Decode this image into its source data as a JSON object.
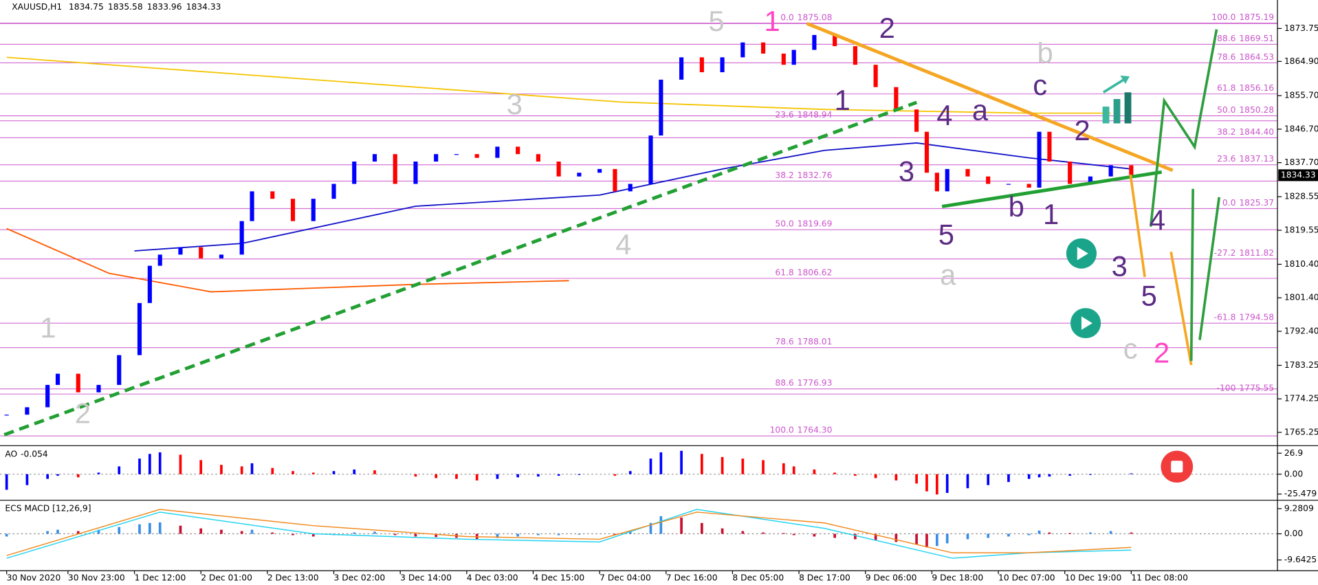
{
  "chart_data": [
    {
      "type": "candlestick",
      "title": "XAUUSD,H1",
      "ohlc_header": [
        1834.75,
        1835.58,
        1833.96,
        1834.33
      ],
      "last_price": 1834.33,
      "xlim": [
        -1.3,
        248.6
      ],
      "xticks": [
        {
          "value": 0,
          "label": "30 Nov 2020"
        },
        {
          "value": 12,
          "label": "30 Nov 23:00"
        },
        {
          "value": 25,
          "label": "1 Dec 12:00"
        },
        {
          "value": 38,
          "label": "2 Dec 01:00"
        },
        {
          "value": 51,
          "label": "2 Dec 13:00"
        },
        {
          "value": 64,
          "label": "3 Dec 02:00"
        },
        {
          "value": 77,
          "label": "3 Dec 14:00"
        },
        {
          "value": 90,
          "label": "4 Dec 03:00"
        },
        {
          "value": 103,
          "label": "4 Dec 15:00"
        },
        {
          "value": 116,
          "label": "7 Dec 04:00"
        },
        {
          "value": 129,
          "label": "7 Dec 16:00"
        },
        {
          "value": 142,
          "label": "8 Dec 05:00"
        },
        {
          "value": 155,
          "label": "8 Dec 17:00"
        },
        {
          "value": 168,
          "label": "9 Dec 06:00"
        },
        {
          "value": 181,
          "label": "9 Dec 18:00"
        },
        {
          "value": 194,
          "label": "10 Dec 07:00"
        },
        {
          "value": 207,
          "label": "10 Dec 19:00"
        },
        {
          "value": 220,
          "label": "11 Dec 08:00"
        }
      ],
      "ylim": [
        1761.9,
        1881.4
      ],
      "yticks": [
        1873.75,
        {
          "value": 1864.9,
          "label": "1864.90"
        },
        {
          "value": 1855.7,
          "label": "1855.70"
        },
        {
          "value": 1846.7,
          "label": "1846.70"
        },
        {
          "value": 1837.7,
          "label": "1837.70"
        },
        1828.55,
        1819.55,
        {
          "value": 1810.4,
          "label": "1810.40"
        },
        {
          "value": 1801.4,
          "label": "1801.40"
        },
        {
          "value": 1792.4,
          "label": "1792.40"
        },
        1783.25,
        1774.25,
        1765.25
      ],
      "x": [
        0,
        4,
        8,
        10,
        14,
        18,
        22,
        26,
        28,
        30,
        34,
        38,
        42,
        46,
        48,
        52,
        56,
        60,
        64,
        68,
        72,
        76,
        80,
        84,
        88,
        92,
        96,
        100,
        104,
        108,
        112,
        116,
        119,
        122,
        126,
        128,
        132,
        136,
        140,
        144,
        148,
        152,
        154,
        158,
        162,
        166,
        170,
        174,
        178,
        180,
        182,
        184,
        188,
        192,
        196,
        200,
        202,
        204,
        208,
        212,
        216,
        220
      ],
      "values": [
        1770,
        1772,
        1778,
        1781,
        1776,
        1778,
        1786,
        1800,
        1810,
        1813,
        1815,
        1812,
        1813,
        1822,
        1830,
        1828,
        1822,
        1828,
        1832,
        1838,
        1840,
        1832,
        1838,
        1840,
        1840,
        1839,
        1842,
        1840,
        1838,
        1834,
        1835,
        1836,
        1830,
        1832,
        1845,
        1860,
        1866,
        1862,
        1866,
        1870,
        1867,
        1864,
        1868,
        1872,
        1869,
        1864,
        1858,
        1852,
        1846,
        1835,
        1830,
        1836,
        1834,
        1832,
        1832,
        1831,
        1846,
        1838,
        1832,
        1834,
        1837,
        1834.33
      ],
      "up_color": "#0000ff",
      "down_color": "#ff0000",
      "moving_averages": [
        {
          "color": "#f5c400",
          "x": [
            0,
            60,
            120,
            160,
            200,
            216
          ],
          "values": [
            1866,
            1860,
            1854,
            1852,
            1851,
            1851
          ]
        },
        {
          "color": "#ff5a00",
          "x": [
            0,
            20,
            40,
            60,
            80,
            110
          ],
          "values": [
            1820,
            1808,
            1803,
            1804,
            1805,
            1806
          ]
        },
        {
          "color": "#1010c8",
          "x": [
            25,
            46,
            80,
            116,
            140,
            160,
            178,
            200,
            220
          ],
          "values": [
            1814,
            1816,
            1826,
            1829,
            1836,
            1841,
            1843,
            1839,
            1836
          ]
        }
      ],
      "fib_color": "#cc55cc",
      "fib_left": [
        {
          "level": "0.0",
          "price": 1875.08
        },
        {
          "level": "23.6",
          "price": 1848.94
        },
        {
          "level": "38.2",
          "price": 1832.76
        },
        {
          "level": "50.0",
          "price": 1819.69
        },
        {
          "level": "61.8",
          "price": 1806.62
        },
        {
          "level": "78.6",
          "price": 1788.01
        },
        {
          "level": "88.6",
          "price": 1776.93
        },
        {
          "level": "100.0",
          "price": {
            "value": 1764.3,
            "label": "1764.30"
          }
        }
      ],
      "fib_right": [
        {
          "level": "100.0",
          "price": 1875.19
        },
        {
          "level": "88.6",
          "price": 1869.51
        },
        {
          "level": "78.6",
          "price": 1864.53
        },
        {
          "level": "61.8",
          "price": 1856.16
        },
        {
          "level": "50.0",
          "price": 1850.28
        },
        {
          "level": "38.2",
          "price": {
            "value": 1844.4,
            "label": "1844.40"
          }
        },
        {
          "level": "23.6",
          "price": 1837.13
        },
        {
          "level": "0.0",
          "price": 1825.37
        },
        {
          "level": "-27.2",
          "price": 1811.82
        },
        {
          "level": "-61.8",
          "price": 1794.58
        },
        {
          "level": "-100",
          "price": 1775.55
        }
      ],
      "annotations": [
        {
          "text": "1",
          "color": "#c8c8c8"
        },
        {
          "text": "2",
          "color": "#c8c8c8"
        },
        {
          "text": "3",
          "color": "#c8c8c8"
        },
        {
          "text": "4",
          "color": "#c8c8c8"
        },
        {
          "text": "5",
          "color": "#c8c8c8"
        },
        {
          "text": "a",
          "color": "#c8c8c8"
        },
        {
          "text": "b",
          "color": "#c8c8c8"
        },
        {
          "text": "c",
          "color": "#c8c8c8"
        },
        {
          "text": "1",
          "color": "#ff44c4"
        },
        {
          "text": "2",
          "color": "#ff44c4"
        },
        {
          "text": "2",
          "color": "#5b2c83"
        },
        {
          "text": "1",
          "color": "#5b2c83"
        },
        {
          "text": "4",
          "color": "#5b2c83"
        },
        {
          "text": "3",
          "color": "#5b2c83"
        },
        {
          "text": "5",
          "color": "#5b2c83"
        },
        {
          "text": "a",
          "color": "#5b2c83"
        },
        {
          "text": "b",
          "color": "#5b2c83"
        },
        {
          "text": "1",
          "color": "#5b2c83"
        },
        {
          "text": "c",
          "color": "#5b2c83"
        },
        {
          "text": "2",
          "color": "#5b2c83"
        },
        {
          "text": "4",
          "color": "#5b2c83"
        },
        {
          "text": "3",
          "color": "#5b2c83"
        },
        {
          "text": "5",
          "color": "#5b2c83"
        }
      ]
    },
    {
      "type": "bar",
      "title": "AO",
      "current": -0.054,
      "ylim": [
        -32.3,
        34.4
      ],
      "yticks": [
        26.9,
        {
          "value": 0,
          "label": "0.00"
        },
        -25.479
      ],
      "up_color": "#0000ff",
      "down_color": "#ff0000",
      "x": [
        0,
        4,
        8,
        10,
        14,
        18,
        22,
        26,
        28,
        30,
        34,
        38,
        42,
        46,
        48,
        52,
        56,
        60,
        64,
        68,
        72,
        76,
        80,
        84,
        88,
        92,
        96,
        100,
        104,
        108,
        112,
        116,
        119,
        122,
        126,
        128,
        132,
        136,
        140,
        144,
        148,
        152,
        154,
        158,
        162,
        166,
        170,
        174,
        178,
        180,
        182,
        184,
        188,
        192,
        196,
        200,
        202,
        204,
        208,
        212,
        216,
        220
      ],
      "values": [
        -20,
        -14,
        -6,
        -2,
        -4,
        2,
        10,
        20,
        26,
        28,
        25,
        18,
        12,
        10,
        14,
        8,
        4,
        2,
        4,
        6,
        5,
        0,
        -3,
        -5,
        -6,
        -8,
        -6,
        -4,
        -3,
        -2,
        -1,
        0,
        -2,
        4,
        20,
        28,
        30,
        26,
        22,
        20,
        18,
        14,
        10,
        6,
        2,
        -2,
        -5,
        -8,
        -12,
        -22,
        -26,
        -24,
        -18,
        -14,
        -10,
        -6,
        -4,
        -3,
        -2,
        -1,
        0,
        1
      ]
    },
    {
      "type": "bar",
      "title": "ECS MACD [12,26,9]",
      "ylim": [
        -13.61,
        11.76
      ],
      "yticks": [
        9.2809,
        {
          "value": 0,
          "label": "0.00"
        },
        -9.6425
      ],
      "up_color": "#3a8ee6",
      "down_color": "#c8102e",
      "x": [
        0,
        4,
        8,
        10,
        14,
        18,
        22,
        26,
        28,
        30,
        34,
        38,
        42,
        46,
        48,
        52,
        56,
        60,
        64,
        68,
        72,
        76,
        80,
        84,
        88,
        92,
        96,
        100,
        104,
        108,
        112,
        116,
        119,
        122,
        126,
        128,
        132,
        136,
        140,
        144,
        148,
        152,
        154,
        158,
        162,
        166,
        170,
        174,
        178,
        180,
        182,
        184,
        188,
        192,
        196,
        200,
        202,
        204,
        208,
        212,
        216,
        220
      ],
      "values": [
        -1,
        0,
        1,
        1.5,
        1,
        1.5,
        2.5,
        3.5,
        4,
        4.2,
        3,
        2,
        1.5,
        1,
        1.5,
        0.5,
        -0.5,
        -1,
        -0.5,
        0.5,
        0.8,
        -0.5,
        -1,
        -1.2,
        -1.5,
        -2,
        -1.5,
        -1,
        -0.5,
        -0.5,
        -0.3,
        0,
        -0.5,
        1,
        4,
        6.5,
        6,
        4,
        2,
        1,
        0.5,
        0.3,
        -0.5,
        -1,
        -1.5,
        -2,
        -2.5,
        -3,
        -4,
        -5,
        -4.5,
        -3.5,
        -2,
        -1.5,
        -1,
        -0.5,
        1.2,
        0.5,
        0.3,
        0.5,
        1,
        0.5
      ],
      "lines": [
        {
          "color": "#22d3f0",
          "x": [
            0,
            30,
            60,
            90,
            116,
            135,
            160,
            185,
            200,
            220
          ],
          "values": [
            -9,
            8,
            0,
            -2,
            -3,
            9,
            2,
            -9,
            -7,
            -6
          ]
        },
        {
          "color": "#f08a1e",
          "x": [
            0,
            30,
            60,
            90,
            116,
            135,
            160,
            185,
            200,
            220
          ],
          "values": [
            -8,
            9,
            3,
            -1,
            -2,
            8,
            4,
            -7,
            -7,
            -5
          ]
        }
      ]
    }
  ]
}
